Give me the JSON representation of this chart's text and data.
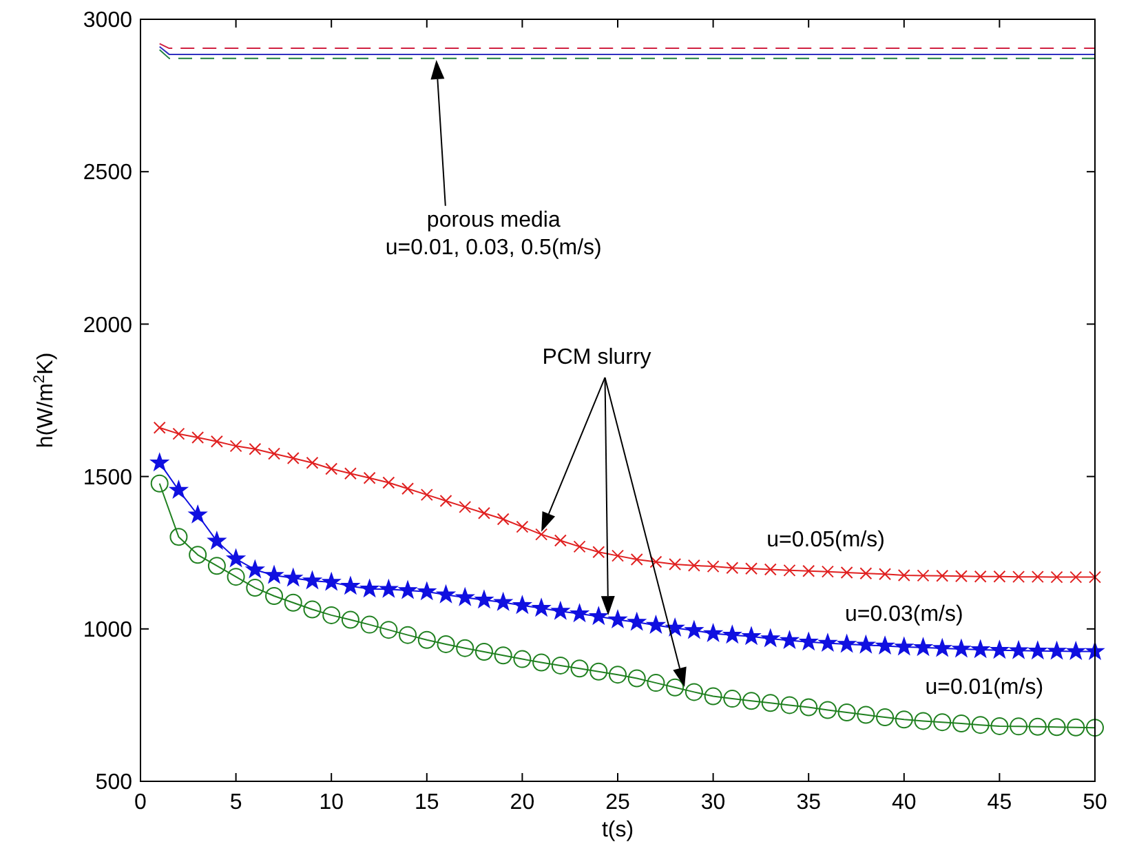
{
  "chart_data": {
    "type": "line",
    "xlabel": "t(s)",
    "ylabel": "h(W/m$^{2}$K)",
    "xlim": [
      0,
      50
    ],
    "ylim": [
      500,
      3000
    ],
    "xticks": [
      0,
      5,
      10,
      15,
      20,
      25,
      30,
      35,
      40,
      45,
      50
    ],
    "yticks": [
      500,
      1000,
      1500,
      2000,
      2500,
      3000
    ],
    "grid": false,
    "series": [
      {
        "color": "#d02040",
        "line_style": "dashed",
        "marker": "none",
        "x": [
          1,
          1.5,
          50
        ],
        "values": [
          2920,
          2905,
          2905
        ]
      },
      {
        "color": "#3030c0",
        "line_style": "solid",
        "marker": "none",
        "x": [
          1,
          1.5,
          50
        ],
        "values": [
          2910,
          2885,
          2885
        ]
      },
      {
        "color": "#208040",
        "line_style": "dashed",
        "marker": "none",
        "x": [
          1,
          1.5,
          50
        ],
        "values": [
          2900,
          2872,
          2872
        ]
      },
      {
        "color": "#e02020",
        "line_style": "solid",
        "marker": "cross",
        "x": [
          1,
          2,
          3,
          4,
          5,
          6,
          7,
          8,
          9,
          10,
          11,
          12,
          13,
          14,
          15,
          16,
          17,
          18,
          19,
          20,
          21,
          22,
          23,
          24,
          25,
          26,
          27,
          28,
          29,
          30,
          31,
          32,
          33,
          34,
          35,
          36,
          37,
          38,
          39,
          40,
          41,
          42,
          43,
          44,
          45,
          46,
          47,
          48,
          49,
          50
        ],
        "values": [
          1660,
          1640,
          1628,
          1615,
          1600,
          1590,
          1575,
          1560,
          1545,
          1525,
          1510,
          1495,
          1480,
          1460,
          1440,
          1420,
          1400,
          1380,
          1360,
          1335,
          1310,
          1290,
          1270,
          1252,
          1240,
          1228,
          1220,
          1212,
          1208,
          1205,
          1200,
          1198,
          1195,
          1192,
          1190,
          1188,
          1185,
          1182,
          1180,
          1176,
          1175,
          1174,
          1173,
          1172,
          1172,
          1171,
          1171,
          1170,
          1170,
          1170
        ]
      },
      {
        "color": "#1010e0",
        "line_style": "solid",
        "marker": "star",
        "x": [
          1,
          2,
          3,
          4,
          5,
          6,
          7,
          8,
          9,
          10,
          11,
          12,
          13,
          14,
          15,
          16,
          17,
          18,
          19,
          20,
          21,
          22,
          23,
          24,
          25,
          26,
          27,
          28,
          29,
          30,
          31,
          32,
          33,
          34,
          35,
          36,
          37,
          38,
          39,
          40,
          41,
          42,
          43,
          44,
          45,
          46,
          47,
          48,
          49,
          50
        ],
        "values": [
          1545,
          1455,
          1374,
          1288,
          1230,
          1194,
          1176,
          1167,
          1158,
          1153,
          1140,
          1131,
          1130,
          1126,
          1122,
          1112,
          1103,
          1095,
          1087,
          1077,
          1068,
          1058,
          1050,
          1041,
          1030,
          1022,
          1012,
          1003,
          995,
          985,
          980,
          975,
          968,
          962,
          957,
          953,
          950,
          947,
          944,
          941,
          939,
          936,
          934,
          932,
          930,
          929,
          928,
          927,
          926,
          926
        ]
      },
      {
        "color": "#208020",
        "line_style": "solid",
        "marker": "circle",
        "x": [
          1,
          2,
          3,
          4,
          5,
          6,
          7,
          8,
          9,
          10,
          11,
          12,
          13,
          14,
          15,
          16,
          17,
          18,
          19,
          20,
          21,
          22,
          23,
          24,
          25,
          26,
          27,
          28,
          29,
          30,
          31,
          32,
          33,
          34,
          35,
          36,
          37,
          38,
          39,
          40,
          41,
          42,
          43,
          44,
          45,
          46,
          47,
          48,
          49,
          50
        ],
        "values": [
          1477,
          1302,
          1243,
          1207,
          1171,
          1135,
          1108,
          1086,
          1064,
          1045,
          1030,
          1014,
          997,
          980,
          964,
          950,
          937,
          925,
          913,
          901,
          890,
          880,
          870,
          860,
          850,
          838,
          823,
          808,
          793,
          779,
          771,
          764,
          757,
          750,
          743,
          734,
          726,
          718,
          710,
          703,
          698,
          694,
          690,
          685,
          681,
          680,
          679,
          678,
          677,
          676
        ]
      }
    ],
    "annotations": [
      "porous media\nu=0.01, 0.03, 0.5(m/s)",
      "PCM slurry",
      "u=0.05(m/s)",
      "u=0.03(m/s)",
      "u=0.01(m/s)"
    ]
  }
}
